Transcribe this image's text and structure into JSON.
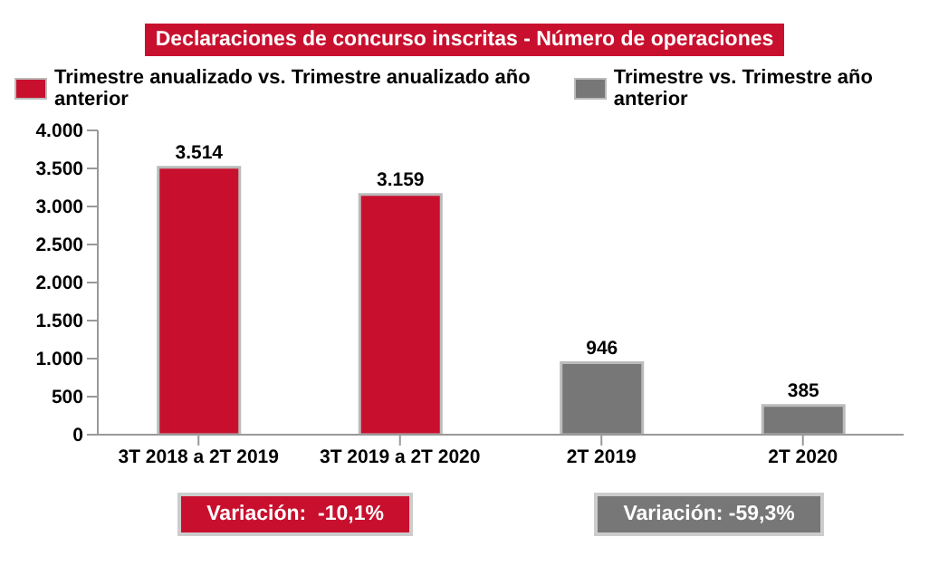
{
  "chart_data": {
    "type": "bar",
    "title": "Declaraciones de concurso inscritas - Número de operaciones",
    "categories": [
      "3T 2018 a 2T 2019",
      "3T 2019 a 2T 2020",
      "2T 2019",
      "2T 2020"
    ],
    "stacked": true,
    "series": [
      {
        "name": "Trimestre anualizado vs. Trimestre anualizado año anterior",
        "color": "#c8102e",
        "values": [
          3514,
          3159,
          null,
          null
        ],
        "value_labels": [
          "3.514",
          "3.159",
          null,
          null
        ]
      },
      {
        "name": "Trimestre vs. Trimestre año anterior",
        "color": "#777777",
        "values": [
          null,
          null,
          946,
          385
        ],
        "value_labels": [
          null,
          null,
          "946",
          "385"
        ]
      }
    ],
    "ylim": [
      0,
      4000
    ],
    "yticks": [
      {
        "value": 0,
        "label": "0"
      },
      {
        "value": 500,
        "label": "500"
      },
      {
        "value": 1000,
        "label": "1.000"
      },
      {
        "value": 1500,
        "label": "1.500"
      },
      {
        "value": 2000,
        "label": "2.000"
      },
      {
        "value": 2500,
        "label": "2.500"
      },
      {
        "value": 3000,
        "label": "3.000"
      },
      {
        "value": 3500,
        "label": "3.500"
      },
      {
        "value": 4000,
        "label": "4.000"
      }
    ],
    "legend": "top",
    "annotations": [
      "Variación:  -10,1%",
      "Variación: -59,3%"
    ]
  }
}
